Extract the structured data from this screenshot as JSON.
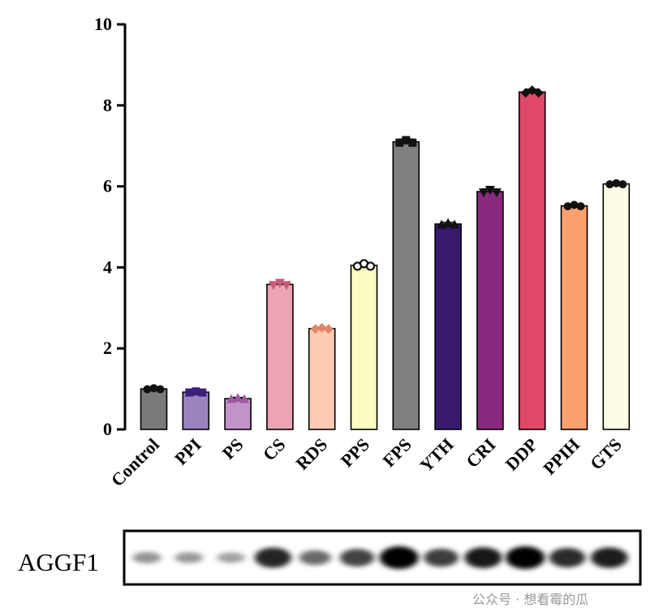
{
  "chart_data": {
    "type": "bar",
    "categories": [
      "Control",
      "PPI",
      "PS",
      "CS",
      "RDS",
      "PPS",
      "FPS",
      "YTH",
      "CRI",
      "DDP",
      "PPIH",
      "GTS"
    ],
    "values": [
      1.0,
      0.92,
      0.76,
      3.58,
      2.49,
      4.05,
      7.1,
      5.07,
      5.87,
      8.33,
      5.52,
      6.06
    ],
    "errors": [
      0.03,
      0.03,
      0.03,
      0.06,
      0.03,
      0.07,
      0.07,
      0.04,
      0.07,
      0.07,
      0.04,
      0.03
    ],
    "colors": [
      "#7a7a7a",
      "#9b84be",
      "#c294c8",
      "#eca4b4",
      "#fccbb2",
      "#fcfcc2",
      "#808080",
      "#3a1a6e",
      "#8a2a7e",
      "#e04868",
      "#fca06e",
      "#fdfce4"
    ],
    "marker_colors": [
      "#111111",
      "#3d1e7a",
      "#9d5aa2",
      "#c85a78",
      "#e0856a",
      "#111111",
      "#111111",
      "#111111",
      "#111111",
      "#111111",
      "#111111",
      "#111111"
    ],
    "markers": [
      "circle",
      "square",
      "triangle-up",
      "triangle-down",
      "diamond",
      "open-circle",
      "square",
      "triangle-up",
      "triangle-down",
      "diamond",
      "circle",
      "circle"
    ],
    "ylim": [
      0,
      10
    ],
    "yticks": [
      0,
      2,
      4,
      6,
      8,
      10
    ],
    "title": "",
    "xlabel": "",
    "ylabel": "",
    "grid": false,
    "blot": {
      "label": "AGGF1",
      "band_intensity": [
        0.22,
        0.2,
        0.16,
        0.82,
        0.45,
        0.65,
        1.0,
        0.68,
        0.88,
        1.0,
        0.78,
        0.85
      ]
    }
  },
  "watermark": "公众号 · 想看霉的瓜"
}
